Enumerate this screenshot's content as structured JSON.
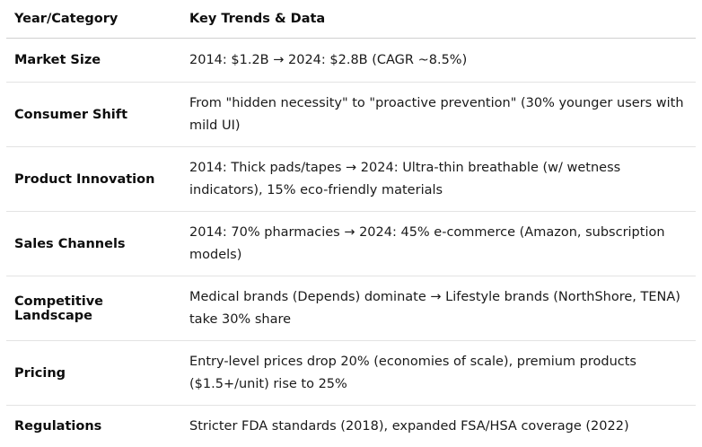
{
  "table": {
    "headers": [
      "Year/Category",
      "Key Trends & Data"
    ],
    "rows": [
      {
        "category": "Market Size",
        "trend": "2014: $1.2B → 2024: $2.8B (CAGR ~8.5%)"
      },
      {
        "category": "Consumer Shift",
        "trend": "From \"hidden necessity\" to \"proactive prevention\" (30% younger users with mild UI)"
      },
      {
        "category": "Product Innovation",
        "trend": "2014: Thick pads/tapes → 2024: Ultra-thin breathable (w/ wetness indicators), 15% eco-friendly materials"
      },
      {
        "category": "Sales Channels",
        "trend": "2014: 70% pharmacies → 2024: 45% e-commerce (Amazon, subscription models)"
      },
      {
        "category": "Competitive Landscape",
        "trend": "Medical brands (Depends) dominate → Lifestyle brands (NorthShore, TENA) take 30% share"
      },
      {
        "category": "Pricing",
        "trend": "Entry-level prices drop 20% (economies of scale), premium products ($1.5+/unit) rise to 25%"
      },
      {
        "category": "Regulations",
        "trend": "Stricter FDA standards (2018), expanded FSA/HSA coverage (2022)"
      }
    ]
  }
}
